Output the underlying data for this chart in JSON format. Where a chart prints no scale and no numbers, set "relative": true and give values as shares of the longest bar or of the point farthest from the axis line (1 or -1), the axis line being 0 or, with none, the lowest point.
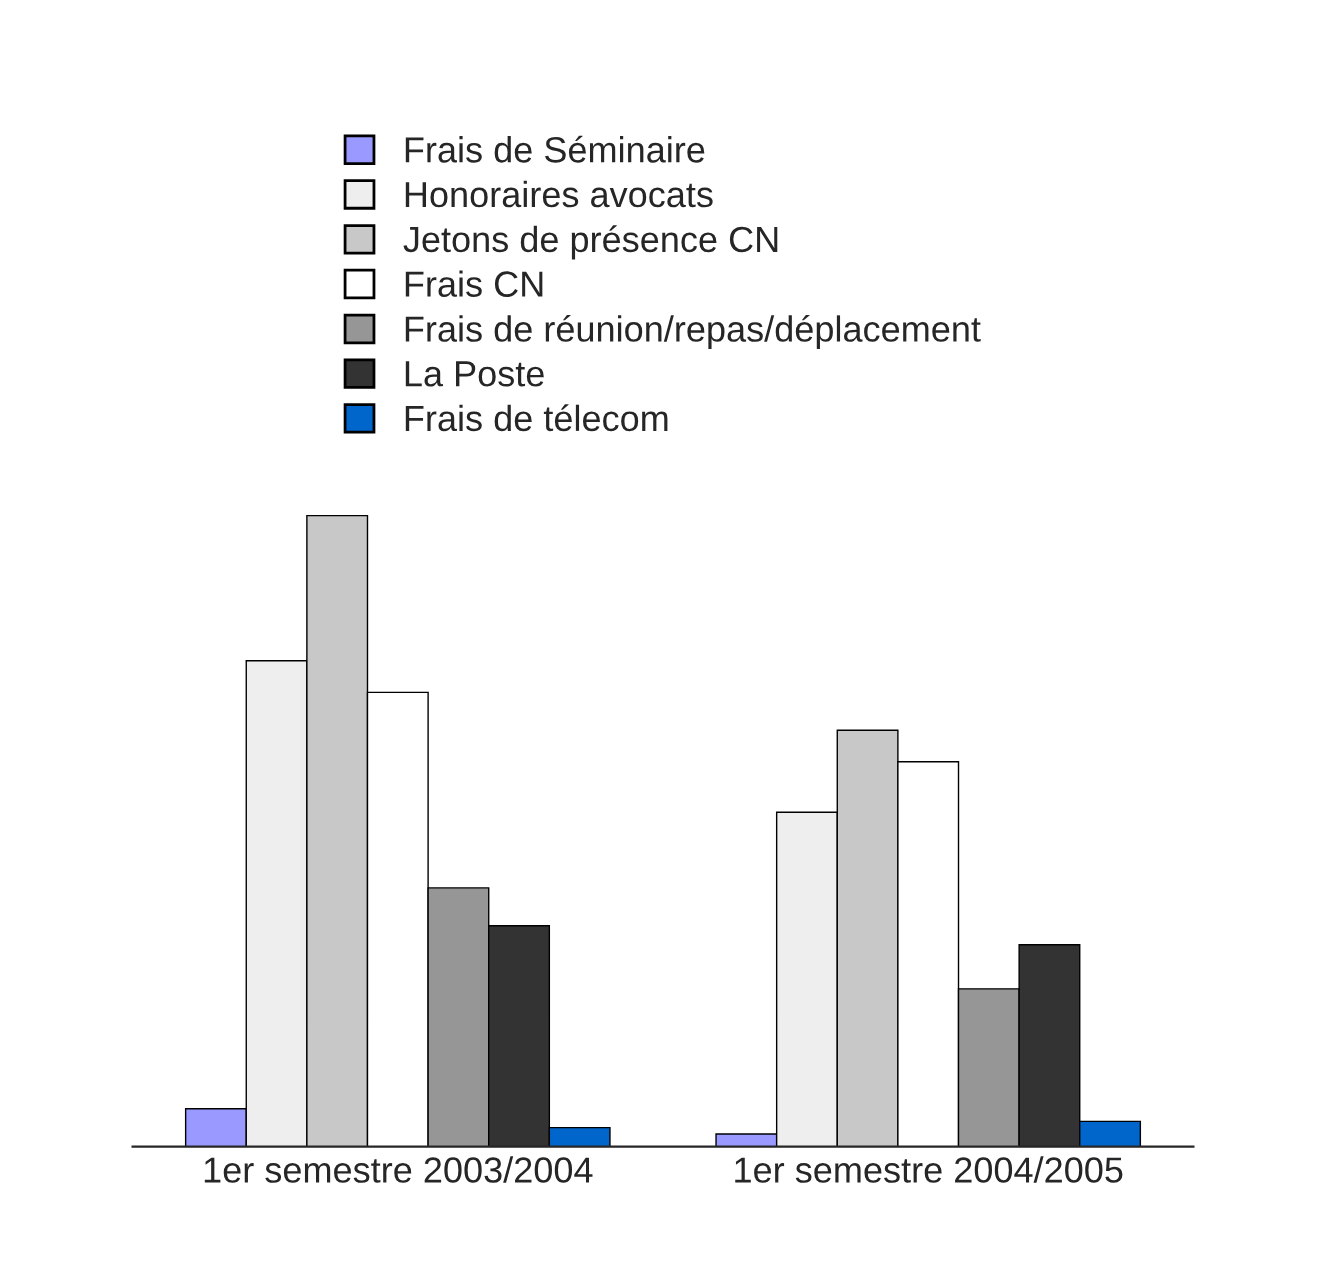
{
  "chart_data": {
    "type": "bar",
    "relative": true,
    "categories": [
      "1er semestre 2003/2004",
      "1er semestre 2004/2005"
    ],
    "series": [
      {
        "name": "Frais de Séminaire",
        "color": "#9999ff",
        "values": [
          0.06,
          0.02
        ]
      },
      {
        "name": "Honoraires avocats",
        "color": "#eeeeee",
        "values": [
          0.77,
          0.53
        ]
      },
      {
        "name": "Jetons de présence CN",
        "color": "#c8c8c8",
        "values": [
          1,
          0.66
        ]
      },
      {
        "name": "Frais CN",
        "color": "#ffffff",
        "values": [
          0.72,
          0.61
        ]
      },
      {
        "name": "Frais de réunion/repas/déplacement",
        "color": "#969696",
        "values": [
          0.41,
          0.25
        ]
      },
      {
        "name": "La Poste",
        "color": "#333333",
        "values": [
          0.35,
          0.32
        ]
      },
      {
        "name": "Frais de télecom",
        "color": "#0066cc",
        "values": [
          0.03,
          0.04
        ]
      }
    ],
    "legend": "top",
    "grid": false
  }
}
